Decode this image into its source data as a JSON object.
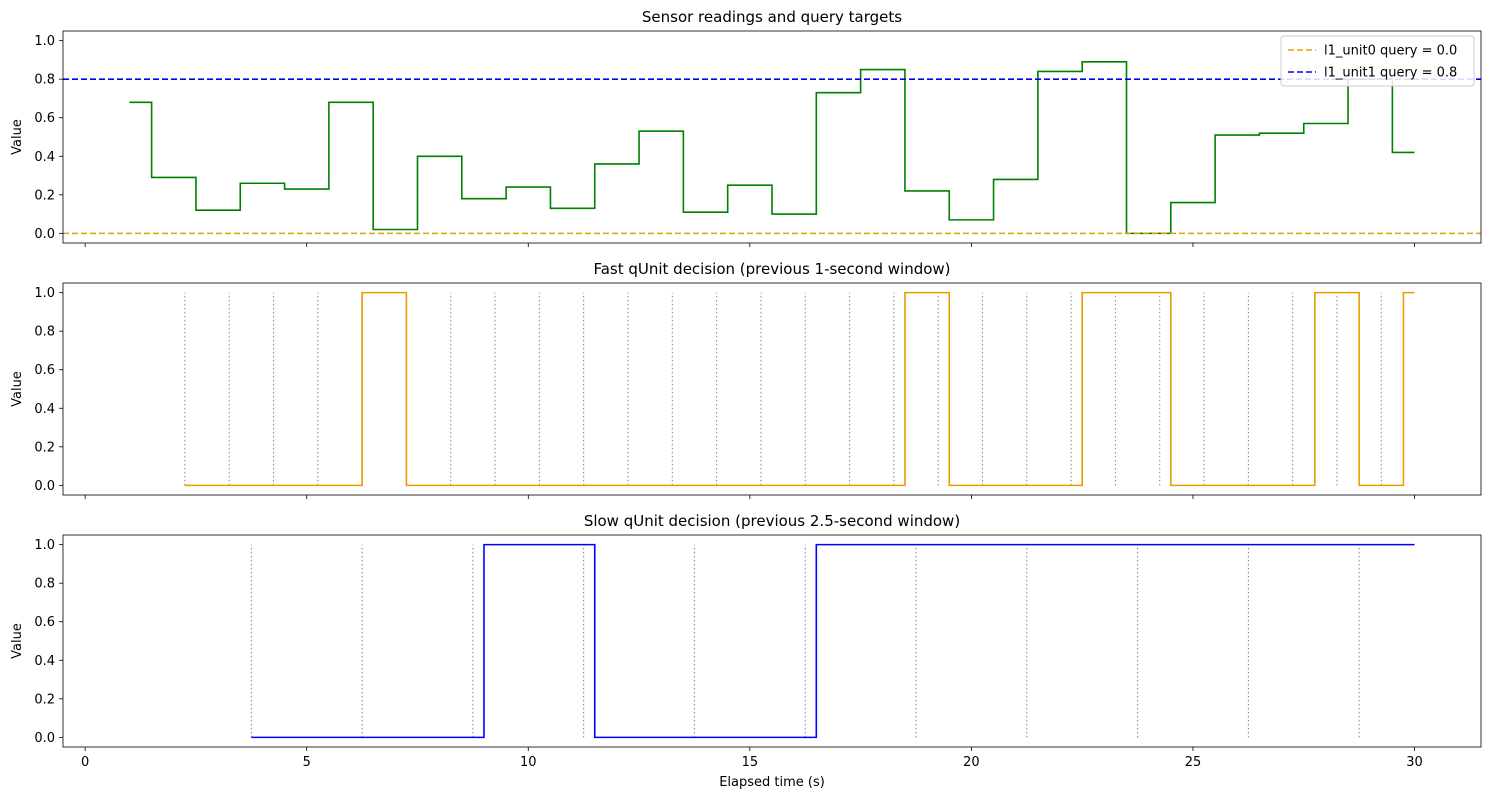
{
  "chart_data": [
    {
      "type": "line",
      "title": "Sensor readings and query targets",
      "ylabel": "Value",
      "xlabel": "",
      "xlim": [
        -0.5,
        31.5
      ],
      "ylim": [
        -0.05,
        1.05
      ],
      "yticks": [
        "0.0",
        "0.2",
        "0.4",
        "0.6",
        "0.8",
        "1.0"
      ],
      "xticks": [
        0,
        5,
        10,
        15,
        20,
        25,
        30
      ],
      "xtick_labels_shown": false,
      "colors": {
        "sensor": "#008000",
        "query0": "#e69f00",
        "query1": "#0000ff"
      },
      "series": [
        {
          "step": "post",
          "x": [
            1.0,
            1.5,
            2.5,
            3.5,
            4.5,
            5.5,
            6.5,
            7.5,
            8.5,
            9.5,
            10.5,
            11.5,
            12.5,
            13.5,
            14.5,
            15.5,
            16.5,
            17.5,
            18.5,
            19.5,
            20.5,
            21.5,
            22.5,
            23.5,
            24.5,
            25.5,
            26.5,
            27.5,
            28.5,
            29.5,
            30.0
          ],
          "y": [
            0.68,
            0.29,
            0.12,
            0.26,
            0.23,
            0.68,
            0.02,
            0.4,
            0.18,
            0.24,
            0.13,
            0.36,
            0.53,
            0.11,
            0.25,
            0.1,
            0.73,
            0.85,
            0.22,
            0.07,
            0.28,
            0.84,
            0.89,
            0.0,
            0.16,
            0.51,
            0.52,
            0.57,
            0.8,
            0.42,
            0.42
          ]
        },
        {
          "name": "l1_unit0 query = 0.0",
          "hline": 0.0,
          "style": "dashed"
        },
        {
          "name": "l1_unit1 query = 0.8",
          "hline": 0.8,
          "style": "dashed"
        }
      ],
      "legend": "top-right"
    },
    {
      "type": "line",
      "title": "Fast qUnit decision (previous 1-second window)",
      "ylabel": "Value",
      "xlabel": "",
      "xlim": [
        -0.5,
        31.5
      ],
      "ylim": [
        -0.05,
        1.05
      ],
      "yticks": [
        "0.0",
        "0.2",
        "0.4",
        "0.6",
        "0.8",
        "1.0"
      ],
      "xticks": [
        0,
        5,
        10,
        15,
        20,
        25,
        30
      ],
      "xtick_labels_shown": false,
      "colors": {
        "decision": "#e69f00",
        "markers": "#808080"
      },
      "series": [
        {
          "step": "post",
          "x": [
            2.25,
            6.25,
            7.25,
            18.5,
            19.5,
            22.5,
            24.5,
            27.75,
            28.75,
            29.75,
            30.0
          ],
          "y": [
            0,
            1,
            0,
            1,
            0,
            1,
            0,
            1,
            0,
            1,
            1
          ]
        }
      ],
      "window_markers": [
        2.25,
        3.25,
        4.25,
        5.25,
        6.25,
        7.25,
        8.25,
        9.25,
        10.25,
        11.25,
        12.25,
        13.25,
        14.25,
        15.25,
        16.25,
        17.25,
        18.25,
        19.25,
        20.25,
        21.25,
        22.25,
        23.25,
        24.25,
        25.25,
        26.25,
        27.25,
        28.25,
        29.25
      ]
    },
    {
      "type": "line",
      "title": "Slow qUnit decision (previous 2.5-second window)",
      "ylabel": "Value",
      "xlabel": "Elapsed time (s)",
      "xlim": [
        -0.5,
        31.5
      ],
      "ylim": [
        -0.05,
        1.05
      ],
      "yticks": [
        "0.0",
        "0.2",
        "0.4",
        "0.6",
        "0.8",
        "1.0"
      ],
      "xticks": [
        0,
        5,
        10,
        15,
        20,
        25,
        30
      ],
      "xtick_labels_shown": true,
      "colors": {
        "decision": "#0000ff",
        "markers": "#808080"
      },
      "series": [
        {
          "step": "post",
          "x": [
            3.75,
            9.0,
            11.5,
            16.5,
            30.0
          ],
          "y": [
            0,
            1,
            0,
            1,
            1
          ]
        }
      ],
      "window_markers": [
        3.75,
        6.25,
        8.75,
        11.25,
        13.75,
        16.25,
        18.75,
        21.25,
        23.75,
        26.25,
        28.75
      ]
    }
  ]
}
